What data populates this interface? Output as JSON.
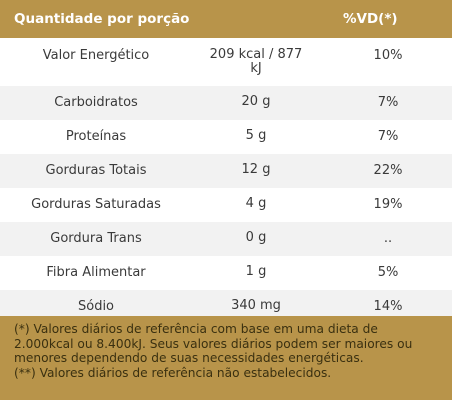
{
  "header": {
    "title": "Quantidade por porção",
    "vd": "%VD(*)"
  },
  "rows": [
    {
      "nutrient": "Valor Energético",
      "amount": "209 kcal / 877 kJ",
      "vd": "10%"
    },
    {
      "nutrient": "Carboidratos",
      "amount": "20 g",
      "vd": "7%"
    },
    {
      "nutrient": "Proteínas",
      "amount": "5 g",
      "vd": "7%"
    },
    {
      "nutrient": "Gorduras Totais",
      "amount": "12 g",
      "vd": "22%"
    },
    {
      "nutrient": "Gorduras Saturadas",
      "amount": "4 g",
      "vd": "19%"
    },
    {
      "nutrient": "Gordura Trans",
      "amount": "0 g",
      "vd": ".."
    },
    {
      "nutrient": "Fibra Alimentar",
      "amount": "1 g",
      "vd": "5%"
    },
    {
      "nutrient": "Sódio",
      "amount": "340 mg",
      "vd": "14%"
    }
  ],
  "footer": {
    "note1": "(*) Valores diários de referência com base em uma dieta de 2.000kcal ou 8.400kJ. Seus valores diários podem ser maiores ou menores dependendo de suas necessidades energéticas.",
    "note2": "(**) Valores diários de referência não estabelecidos."
  },
  "colors": {
    "accent": "#b8944a",
    "row_alt": "#f2f2f2",
    "text": "#3a3a3a"
  }
}
